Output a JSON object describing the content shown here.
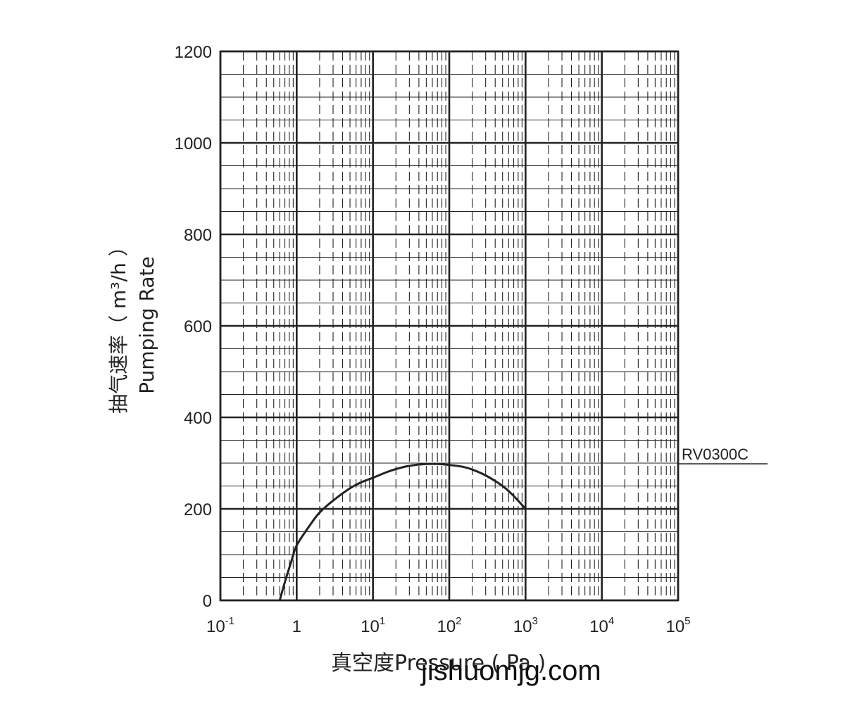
{
  "chart_data": {
    "type": "line",
    "xscale": "log",
    "xlim": [
      0.1,
      100000
    ],
    "ylim": [
      0,
      1200
    ],
    "y_ticks": [
      0,
      200,
      400,
      600,
      800,
      1000,
      1200
    ],
    "y_tick_labels": [
      "0",
      "200",
      "400",
      "600",
      "800",
      "1000",
      "1200"
    ],
    "x_tick_labels": [
      {
        "base": "10",
        "exp": "-1"
      },
      {
        "base": "1",
        "exp": ""
      },
      {
        "base": "10",
        "exp": "1"
      },
      {
        "base": "10",
        "exp": "2"
      },
      {
        "base": "10",
        "exp": "3"
      },
      {
        "base": "10",
        "exp": "4"
      },
      {
        "base": "10",
        "exp": "5"
      }
    ],
    "ylabel_line1": "抽气速率（ m³/h ）",
    "ylabel_line2": "Pumping Rate",
    "xlabel": "真空度Pressure ( Pa )",
    "grid": true,
    "series": [
      {
        "name": "RV0300C",
        "x": [
          0.6,
          0.7,
          0.85,
          1,
          1.5,
          2,
          3,
          5,
          7,
          10,
          15,
          20,
          30,
          50,
          70,
          100,
          150,
          200,
          300,
          500,
          700,
          1000
        ],
        "y": [
          0,
          40,
          85,
          120,
          165,
          192,
          218,
          245,
          258,
          268,
          280,
          287,
          294,
          298,
          298,
          296,
          292,
          286,
          273,
          250,
          228,
          200
        ]
      }
    ],
    "color": "#222222"
  },
  "watermark": "jishuomjg.com"
}
